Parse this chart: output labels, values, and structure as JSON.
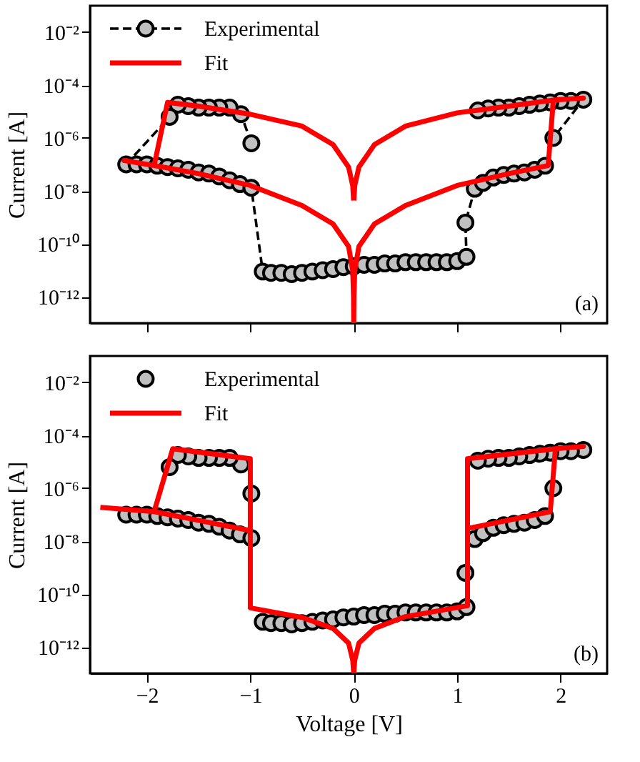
{
  "chart_data": [
    {
      "type": "line",
      "ylabel": "Current [A]",
      "log": true,
      "grid": false,
      "legend": "top left",
      "tick_labels": "y",
      "annotations": [
        "(a)"
      ],
      "xlim": [
        -2.55,
        2.45
      ],
      "xticks": [
        {
          "value": -2,
          "label": null
        },
        {
          "value": -1,
          "label": null
        },
        {
          "value": 0,
          "label": null
        },
        {
          "value": 1,
          "label": null
        },
        {
          "value": 2,
          "label": null
        }
      ],
      "ylim": [
        1e-13,
        0.1
      ],
      "yticks": [
        {
          "value": 0.01,
          "label": "10⁻²"
        },
        {
          "value": 0.0001,
          "label": "10⁻⁴"
        },
        {
          "value": 1e-06,
          "label": "10⁻⁶"
        },
        {
          "value": 1e-08,
          "label": "10⁻⁸"
        },
        {
          "value": 1e-10,
          "label": "10⁻¹⁰"
        },
        {
          "value": 1e-12,
          "label": "10⁻¹²"
        }
      ],
      "series": [
        {
          "name": "Experimental",
          "type": "line",
          "color": "#c0c0c0",
          "marker": "circle",
          "line_style": "dashed",
          "x": [
            -0.99,
            -1.09,
            -1.2,
            -1.3,
            -1.4,
            -1.5,
            -1.6,
            -1.7,
            -1.78,
            -2.2,
            -2.1,
            -2.0,
            -1.9,
            -1.8,
            -1.7,
            -1.6,
            -1.5,
            -1.4,
            -1.3,
            -1.2,
            -1.1,
            -0.99,
            -0.88,
            -0.8,
            -0.7,
            -0.6,
            -0.5,
            -0.4,
            -0.3,
            -0.2,
            -0.1,
            0.0,
            0.1,
            0.2,
            0.3,
            0.4,
            0.5,
            0.6,
            0.7,
            0.8,
            0.9,
            1.0,
            1.09,
            1.08,
            1.17,
            1.25,
            1.35,
            1.45,
            1.55,
            1.65,
            1.75,
            1.85,
            1.93,
            2.22,
            2.1,
            2.0,
            1.9,
            1.8,
            1.7,
            1.6,
            1.5,
            1.4,
            1.3,
            1.2
          ],
          "values": [
            6.3e-07,
            7.9e-06,
            1.4e-05,
            1.4e-05,
            1.4e-05,
            1.4e-05,
            1.6e-05,
            1.8e-05,
            6.3e-06,
            1e-07,
            1e-07,
            1e-07,
            8.9e-08,
            7.9e-08,
            7.1e-08,
            6.3e-08,
            5e-08,
            4.5e-08,
            3.5e-08,
            2.5e-08,
            1.8e-08,
            1.3e-08,
            8.9e-12,
            7.9e-12,
            7.9e-12,
            7.1e-12,
            7.9e-12,
            8.9e-12,
            1e-11,
            1.1e-11,
            1.3e-11,
            1.4e-11,
            1.6e-11,
            1.6e-11,
            1.8e-11,
            1.8e-11,
            2e-11,
            2e-11,
            2e-11,
            2e-11,
            2e-11,
            2.2e-11,
            3.2e-11,
            6.3e-10,
            1.2e-08,
            2e-08,
            3.2e-08,
            4e-08,
            4.5e-08,
            5e-08,
            6.3e-08,
            8.9e-08,
            1e-06,
            2.8e-05,
            2.5e-05,
            2.5e-05,
            2.2e-05,
            2e-05,
            1.8e-05,
            1.6e-05,
            1.4e-05,
            1.4e-05,
            1.3e-05,
            1.1e-05
          ]
        },
        {
          "name": "Fit",
          "type": "line",
          "color": "#ff0000",
          "line_style": "solid",
          "x": [
            -0.001,
            -0.01,
            -0.05,
            -0.2,
            -0.5,
            -1.0,
            -1.5,
            -1.8,
            -1.93,
            -2.22,
            -1.93,
            -1.5,
            -1.0,
            -0.5,
            -0.2,
            -0.05,
            -0.01,
            -0.002,
            0,
            0.002,
            0.01,
            0.05,
            0.2,
            0.5,
            1.0,
            1.5,
            1.88,
            1.93,
            2.22,
            1.93,
            1.5,
            1.0,
            0.5,
            0.2,
            0.05,
            0.01,
            0.001
          ],
          "values": [
            4.3e-09,
            1.6e-08,
            7.9e-08,
            5.6e-07,
            2.8e-06,
            7.9e-06,
            1.6e-05,
            2.2e-05,
            9.1e-08,
            1.4e-07,
            9.1e-08,
            4.5e-08,
            1.6e-08,
            2.8e-09,
            5.6e-10,
            7.9e-11,
            1e-11,
            1e-12,
            1e-13,
            1e-12,
            1e-11,
            7.9e-11,
            5.6e-10,
            2.8e-09,
            1.6e-08,
            4.5e-08,
            9.1e-08,
            2.7e-05,
            3.2e-05,
            2.7e-05,
            1.6e-05,
            8.9e-06,
            2.8e-06,
            5.6e-07,
            7.9e-08,
            1.6e-08,
            4.3e-09
          ]
        }
      ]
    },
    {
      "type": "line",
      "xlabel": "Voltage [V]",
      "ylabel": "Current [A]",
      "log": true,
      "grid": false,
      "legend": "top left",
      "annotations": [
        "(b)"
      ],
      "xlim": [
        -2.55,
        2.45
      ],
      "xticks": [
        {
          "value": -2,
          "label": "−2"
        },
        {
          "value": -1,
          "label": "−1"
        },
        0,
        1,
        2
      ],
      "ylim": [
        1e-13,
        0.1
      ],
      "yticks": [
        {
          "value": 0.01,
          "label": "10⁻²"
        },
        {
          "value": 0.0001,
          "label": "10⁻⁴"
        },
        {
          "value": 1e-06,
          "label": "10⁻⁶"
        },
        {
          "value": 1e-08,
          "label": "10⁻⁸"
        },
        {
          "value": 1e-10,
          "label": "10⁻¹⁰"
        },
        {
          "value": 1e-12,
          "label": "10⁻¹²"
        }
      ],
      "series": [
        {
          "name": "Experimental",
          "type": "scatter",
          "color": "#c0c0c0",
          "marker": "circle",
          "x": [
            -0.99,
            -1.09,
            -1.2,
            -1.3,
            -1.4,
            -1.5,
            -1.6,
            -1.7,
            -1.78,
            -2.2,
            -2.1,
            -2.0,
            -1.9,
            -1.8,
            -1.7,
            -1.6,
            -1.5,
            -1.4,
            -1.3,
            -1.2,
            -1.1,
            -0.99,
            -0.88,
            -0.8,
            -0.7,
            -0.6,
            -0.5,
            -0.4,
            -0.3,
            -0.2,
            -0.1,
            0.0,
            0.1,
            0.2,
            0.3,
            0.4,
            0.5,
            0.6,
            0.7,
            0.8,
            0.9,
            1.0,
            1.09,
            1.08,
            1.17,
            1.25,
            1.35,
            1.45,
            1.55,
            1.65,
            1.75,
            1.85,
            1.93,
            2.22,
            2.1,
            2.0,
            1.9,
            1.8,
            1.7,
            1.6,
            1.5,
            1.4,
            1.3,
            1.2
          ],
          "values": [
            6.3e-07,
            7.9e-06,
            1.4e-05,
            1.4e-05,
            1.4e-05,
            1.4e-05,
            1.6e-05,
            1.8e-05,
            6.3e-06,
            1e-07,
            1e-07,
            1e-07,
            8.9e-08,
            7.9e-08,
            7.1e-08,
            6.3e-08,
            5e-08,
            4.5e-08,
            3.5e-08,
            2.5e-08,
            1.8e-08,
            1.3e-08,
            8.9e-12,
            7.9e-12,
            7.9e-12,
            7.1e-12,
            7.9e-12,
            8.9e-12,
            1e-11,
            1.1e-11,
            1.3e-11,
            1.4e-11,
            1.6e-11,
            1.6e-11,
            1.8e-11,
            1.8e-11,
            2e-11,
            2e-11,
            2e-11,
            2e-11,
            2e-11,
            2.2e-11,
            3.2e-11,
            6.3e-10,
            1.2e-08,
            2e-08,
            3.2e-08,
            4e-08,
            4.5e-08,
            5e-08,
            6.3e-08,
            8.9e-08,
            1e-06,
            2.8e-05,
            2.5e-05,
            2.5e-05,
            2.2e-05,
            2e-05,
            1.8e-05,
            1.6e-05,
            1.4e-05,
            1.4e-05,
            1.3e-05,
            1.1e-05
          ]
        },
        {
          "name": "Fit",
          "type": "line",
          "color": "#ff0000",
          "line_style": "solid",
          "x": [
            -2.45,
            -1.93,
            -1.0,
            -1.93,
            -1.75,
            -1.0,
            -1.0,
            -0.5,
            -0.2,
            -0.05,
            -0.01,
            0,
            0.01,
            0.05,
            0.2,
            0.5,
            1.1,
            1.1,
            1.95,
            2.22,
            1.95,
            1.9,
            1.1
          ],
          "values": [
            1.9e-07,
            1.3e-07,
            2.5e-08,
            1.3e-07,
            3.1e-05,
            1.3e-05,
            3e-11,
            1.3e-11,
            5e-12,
            1.4e-12,
            3.2e-13,
            1e-13,
            3.2e-13,
            1.4e-12,
            5e-12,
            1.4e-11,
            3.6e-11,
            1.3e-05,
            3.1e-05,
            3.8e-05,
            3.1e-05,
            1.3e-07,
            3e-08
          ]
        }
      ]
    }
  ]
}
